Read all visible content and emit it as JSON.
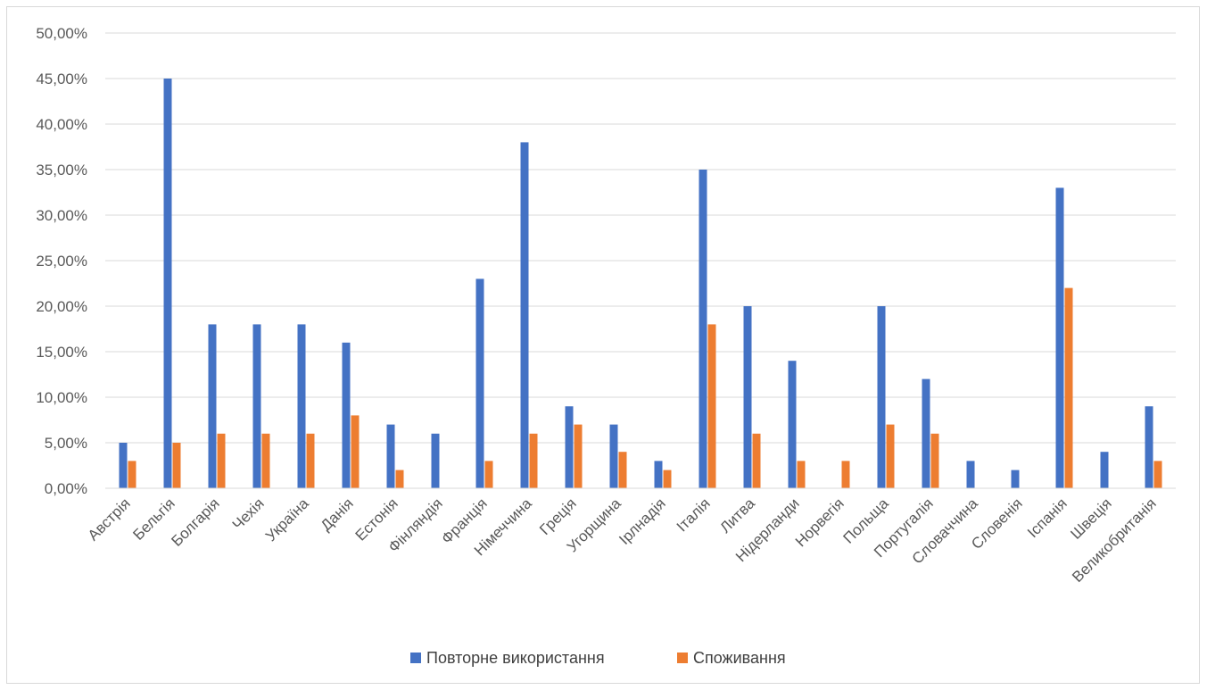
{
  "chart_data": {
    "type": "bar",
    "categories": [
      "Австрія",
      "Бельгія",
      "Болгарія",
      "Чехія",
      "Україна",
      "Данія",
      "Естонія",
      "Фінляндія",
      "Франція",
      "Німеччина",
      "Греція",
      "Угорщина",
      "Ірлнадія",
      "Італія",
      "Литва",
      "Нідерланди",
      "Норвегія",
      "Польща",
      "Португалія",
      "Словаччина",
      "Словенія",
      "Іспанія",
      "Швеція",
      "Великобританія"
    ],
    "series": [
      {
        "name": "Повторне використання",
        "color": "#4472c4",
        "values": [
          0.05,
          0.45,
          0.18,
          0.18,
          0.18,
          0.16,
          0.07,
          0.06,
          0.23,
          0.38,
          0.09,
          0.07,
          0.03,
          0.35,
          0.2,
          0.14,
          0,
          0.2,
          0.12,
          0.03,
          0.02,
          0.33,
          0.04,
          0.09
        ]
      },
      {
        "name": "Споживання",
        "color": "#ed7d31",
        "values": [
          0.03,
          0.05,
          0.06,
          0.06,
          0.06,
          0.08,
          0.02,
          0,
          0.03,
          0.06,
          0.07,
          0.04,
          0.02,
          0.18,
          0.06,
          0.03,
          0.03,
          0.07,
          0.06,
          0,
          0,
          0.22,
          0,
          0.03
        ]
      }
    ],
    "yticks": [
      "0,00%",
      "5,00%",
      "10,00%",
      "15,00%",
      "20,00%",
      "25,00%",
      "30,00%",
      "35,00%",
      "40,00%",
      "45,00%",
      "50,00%"
    ],
    "ylim": [
      0,
      0.5
    ],
    "title": "",
    "xlabel": "",
    "ylabel": "",
    "grid": true,
    "legend_position": "bottom"
  }
}
